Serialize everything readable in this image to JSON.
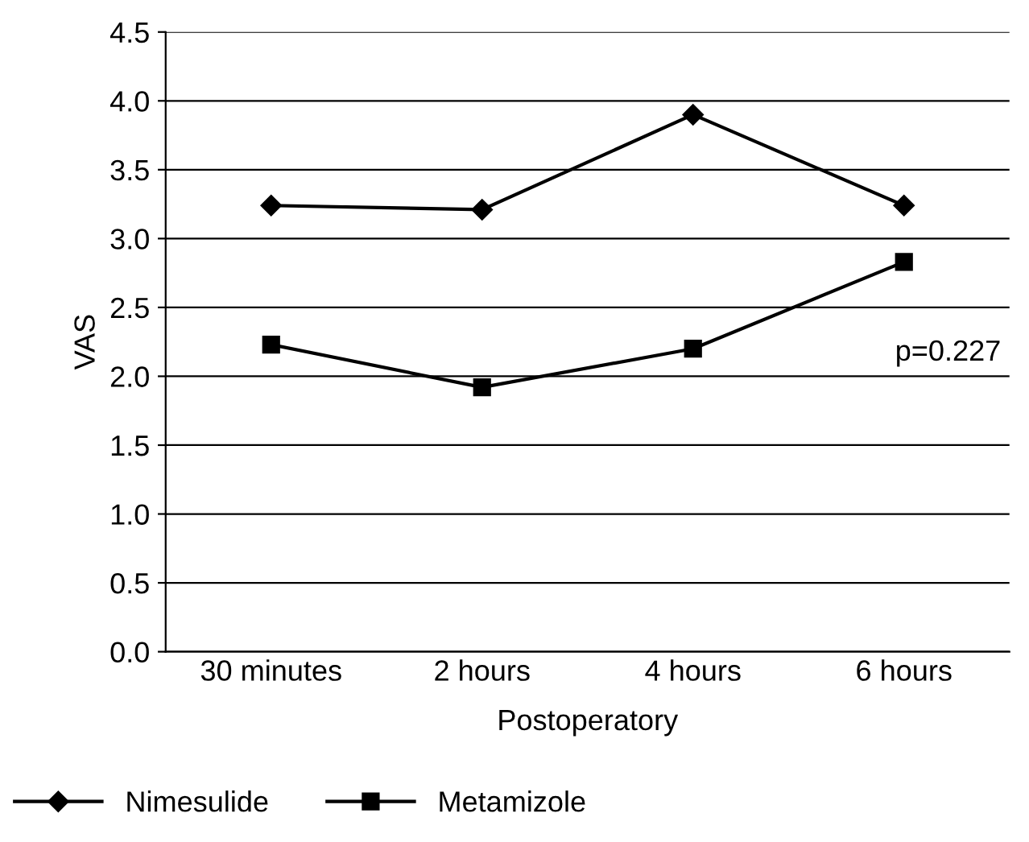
{
  "chart_data": {
    "type": "line",
    "xlabel": "Postoperatory",
    "ylabel": "VAS",
    "categories": [
      "30 minutes",
      "2 hours",
      "4 hours",
      "6 hours"
    ],
    "series": [
      {
        "name": "Nimesulide",
        "color": "#000000",
        "marker": "diamond",
        "values": [
          3.24,
          3.21,
          3.9,
          3.24
        ]
      },
      {
        "name": "Metamizole",
        "color": "#000000",
        "marker": "square",
        "values": [
          2.23,
          1.92,
          2.2,
          2.83
        ]
      }
    ],
    "ylim": [
      0,
      4.5
    ],
    "yticks": [
      {
        "value": 0,
        "label": "0.0"
      },
      {
        "value": 0.5,
        "label": "0.5"
      },
      {
        "value": 1,
        "label": "1.0"
      },
      {
        "value": 1.5,
        "label": "1.5"
      },
      {
        "value": 2,
        "label": "2.0"
      },
      {
        "value": 2.5,
        "label": "2.5"
      },
      {
        "value": 3,
        "label": "3.0"
      },
      {
        "value": 3.5,
        "label": "3.5"
      },
      {
        "value": 4,
        "label": "4.0"
      },
      {
        "value": 4.5,
        "label": "4.5"
      }
    ],
    "grid": "y",
    "legend": "bottom",
    "line_style": "solid",
    "annotations": [
      "p=0.227"
    ]
  }
}
